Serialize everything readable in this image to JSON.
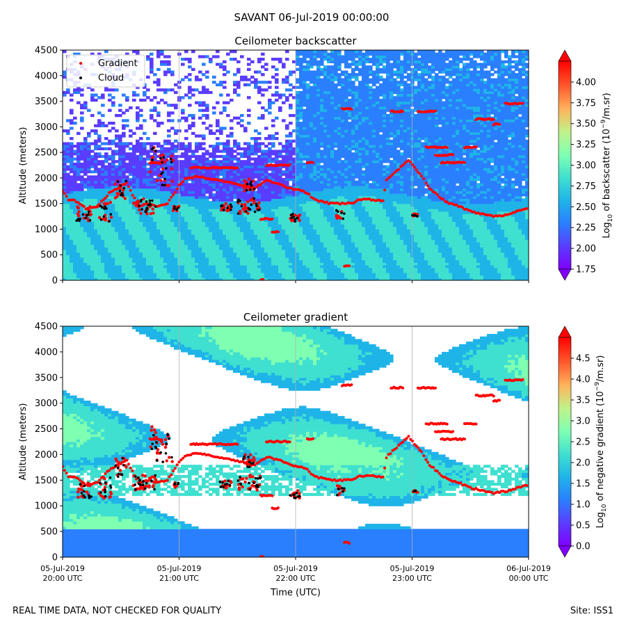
{
  "suptitle": "SAVANT 06-Jul-2019 00:00:00",
  "footer": {
    "left": "REAL TIME DATA, NOT CHECKED FOR QUALITY",
    "right": "Site: ISS1"
  },
  "colors": {
    "gradient_marker": "#ff0000",
    "cloud_marker": "#000000",
    "colormap": [
      "#8000ff",
      "#5a3cff",
      "#2a7fff",
      "#1fb4e8",
      "#3fe0d0",
      "#7fffb2",
      "#c0f28a",
      "#ffb35c",
      "#ff5a2e",
      "#ff0000"
    ]
  },
  "chart_data": [
    {
      "type": "heatmap",
      "title": "Ceilometer backscatter",
      "xlabel": "",
      "ylabel": "Altitude (meters)",
      "xlim": [
        "05-Jul-2019 20:00 UTC",
        "06-Jul-2019 00:00 UTC"
      ],
      "ylim": [
        0,
        4500
      ],
      "yticks": [
        "0",
        "500",
        "1000",
        "1500",
        "2000",
        "2500",
        "3000",
        "3500",
        "4000",
        "4500"
      ],
      "xticks": [],
      "grid": "vertical lines at hourly ticks",
      "legend": {
        "placement": "top-left",
        "entries": [
          "Gradient",
          "Cloud"
        ]
      },
      "colorbar": {
        "label": "Log10 of backscatter (10^-9/m.sr)",
        "range": [
          1.75,
          4.25
        ],
        "ticks": [
          "1.75",
          "2.00",
          "2.25",
          "2.50",
          "2.75",
          "3.00",
          "3.25",
          "3.50",
          "3.75",
          "4.00"
        ]
      }
    },
    {
      "type": "heatmap",
      "title": "Ceilometer gradient",
      "xlabel": "Time (UTC)",
      "ylabel": "Altitude (meters)",
      "xlim": [
        "05-Jul-2019 20:00 UTC",
        "06-Jul-2019 00:00 UTC"
      ],
      "ylim": [
        0,
        4500
      ],
      "yticks": [
        "0",
        "500",
        "1000",
        "1500",
        "2000",
        "2500",
        "3000",
        "3500",
        "4000",
        "4500"
      ],
      "xticks": [
        {
          "line1": "05-Jul-2019",
          "line2": "20:00 UTC"
        },
        {
          "line1": "05-Jul-2019",
          "line2": "21:00 UTC"
        },
        {
          "line1": "05-Jul-2019",
          "line2": "22:00 UTC"
        },
        {
          "line1": "05-Jul-2019",
          "line2": "23:00 UTC"
        },
        {
          "line1": "06-Jul-2019",
          "line2": "00:00 UTC"
        }
      ],
      "grid": "vertical lines at hourly ticks",
      "colorbar": {
        "label": "Log10 of negative gradient (10^-9/m.sr)",
        "range": [
          0.0,
          5.0
        ],
        "ticks": [
          "0.0",
          "0.5",
          "1.0",
          "1.5",
          "2.0",
          "2.5",
          "3.0",
          "3.5",
          "4.0",
          "4.5"
        ]
      }
    }
  ],
  "series": {
    "gradient": {
      "name": "Gradient",
      "points": [
        [
          0.0,
          1750
        ],
        [
          0.05,
          1580
        ],
        [
          0.1,
          1560
        ],
        [
          0.15,
          1500
        ],
        [
          0.2,
          1400
        ],
        [
          0.3,
          1450
        ],
        [
          0.4,
          1700
        ],
        [
          0.55,
          1900
        ],
        [
          0.65,
          1450
        ],
        [
          0.75,
          1500
        ],
        [
          0.8,
          1450
        ],
        [
          0.9,
          1500
        ],
        [
          1.0,
          1850
        ],
        [
          1.05,
          1980
        ],
        [
          1.15,
          2030
        ],
        [
          1.25,
          1990
        ],
        [
          1.35,
          1950
        ],
        [
          1.45,
          1900
        ],
        [
          1.55,
          1850
        ],
        [
          1.65,
          1800
        ],
        [
          1.75,
          1950
        ],
        [
          1.85,
          1900
        ],
        [
          1.95,
          1800
        ],
        [
          2.05,
          1750
        ],
        [
          2.1,
          1700
        ],
        [
          2.15,
          1600
        ],
        [
          2.2,
          1550
        ],
        [
          2.3,
          1500
        ],
        [
          2.4,
          1500
        ],
        [
          2.5,
          1520
        ],
        [
          2.55,
          1580
        ],
        [
          2.65,
          1580
        ],
        [
          2.75,
          1550
        ],
        [
          2.78,
          1950
        ],
        [
          2.85,
          2100
        ],
        [
          2.92,
          2250
        ],
        [
          2.97,
          2350
        ],
        [
          3.02,
          2200
        ],
        [
          3.08,
          2050
        ],
        [
          3.12,
          1900
        ],
        [
          3.15,
          1800
        ],
        [
          3.2,
          1700
        ],
        [
          3.25,
          1600
        ],
        [
          3.3,
          1520
        ],
        [
          3.4,
          1450
        ],
        [
          3.5,
          1350
        ],
        [
          3.6,
          1300
        ],
        [
          3.7,
          1250
        ],
        [
          3.8,
          1280
        ],
        [
          3.9,
          1350
        ],
        [
          4.0,
          1420
        ]
      ],
      "layers": [
        [
          1.1,
          1.5,
          2200
        ],
        [
          1.75,
          1.95,
          2250
        ],
        [
          2.1,
          2.15,
          2300
        ],
        [
          0.75,
          0.85,
          2300
        ],
        [
          2.4,
          2.48,
          3350
        ],
        [
          2.82,
          2.92,
          3300
        ],
        [
          3.05,
          3.2,
          3300
        ],
        [
          3.55,
          3.7,
          3150
        ],
        [
          3.7,
          3.75,
          3050
        ],
        [
          3.8,
          3.95,
          3450
        ],
        [
          3.45,
          3.55,
          2600
        ],
        [
          3.12,
          3.3,
          2600
        ],
        [
          3.2,
          3.35,
          2450
        ],
        [
          3.25,
          3.45,
          2300
        ],
        [
          1.7,
          1.8,
          1200
        ],
        [
          1.8,
          1.85,
          950
        ],
        [
          2.42,
          2.46,
          280
        ],
        [
          1.7,
          1.72,
          5
        ]
      ]
    },
    "cloud": {
      "name": "Cloud",
      "clusters": [
        [
          0.12,
          0.25,
          1150,
          1450
        ],
        [
          0.3,
          0.42,
          1150,
          1550
        ],
        [
          0.45,
          0.55,
          1550,
          1950
        ],
        [
          0.6,
          0.8,
          1300,
          1600
        ],
        [
          0.75,
          0.8,
          2100,
          2600
        ],
        [
          0.8,
          0.95,
          1850,
          2450
        ],
        [
          0.95,
          1.0,
          1350,
          1450
        ],
        [
          1.35,
          1.45,
          1350,
          1500
        ],
        [
          1.5,
          1.7,
          1300,
          1600
        ],
        [
          1.55,
          1.65,
          1750,
          2000
        ],
        [
          1.95,
          2.05,
          1150,
          1300
        ],
        [
          2.35,
          2.42,
          1200,
          1400
        ],
        [
          3.0,
          3.05,
          1250,
          1300
        ]
      ]
    }
  }
}
